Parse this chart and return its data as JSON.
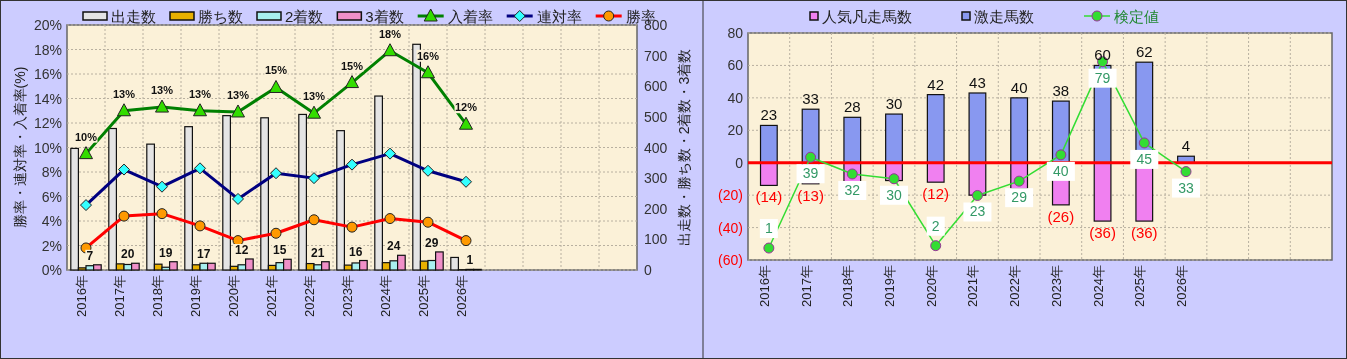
{
  "chart_data": [
    {
      "type": "bar",
      "legend": "top",
      "grid": true,
      "categories": [
        "2016年",
        "2017年",
        "2018年",
        "2019年",
        "2020年",
        "2021年",
        "2022年",
        "2023年",
        "2024年",
        "2025年",
        "2026年",
        null,
        null,
        null,
        null
      ],
      "ylabel": "勝率・連対率・入着率(%)",
      "y2label": "出走数・勝ち数・2着数・3着数",
      "ylim": [
        0,
        20
      ],
      "yticks": [
        {
          "value": 0,
          "label": "0%"
        },
        {
          "value": 2,
          "label": "2%"
        },
        {
          "value": 4,
          "label": "4%"
        },
        {
          "value": 6,
          "label": "6%"
        },
        {
          "value": 8,
          "label": "8%"
        },
        {
          "value": 10,
          "label": "10%"
        },
        {
          "value": 12,
          "label": "12%"
        },
        {
          "value": 14,
          "label": "14%"
        },
        {
          "value": 16,
          "label": "16%"
        },
        {
          "value": 18,
          "label": "18%"
        },
        {
          "value": 20,
          "label": "20%"
        }
      ],
      "y2lim": [
        0,
        800
      ],
      "y2ticks": [
        0,
        100,
        200,
        300,
        400,
        500,
        600,
        700,
        800
      ],
      "series": [
        {
          "name": "出走数",
          "axis": "y2",
          "color": "#e4e4e4",
          "values": [
            397,
            462,
            411,
            468,
            504,
            497,
            508,
            455,
            568,
            737,
            41,
            null,
            null,
            null,
            null
          ]
        },
        {
          "name": "勝ち数",
          "axis": "y2",
          "color": "#e8b000",
          "values": [
            7,
            20,
            19,
            17,
            12,
            15,
            21,
            16,
            24,
            29,
            1,
            null,
            null,
            null,
            null
          ],
          "value_labels": [
            "7",
            "20",
            "19",
            "17",
            "12",
            "15",
            "21",
            "16",
            "24",
            "29",
            "1",
            null,
            null,
            null,
            null
          ]
        },
        {
          "name": "2着数",
          "axis": "y2",
          "color": "#a8f0f0",
          "values": [
            14,
            18,
            9,
            22,
            17,
            24,
            17,
            23,
            30,
            31,
            2,
            null,
            null,
            null,
            null
          ]
        },
        {
          "name": "3着数",
          "axis": "y2",
          "color": "#f090c8",
          "values": [
            17,
            22,
            27,
            22,
            36,
            35,
            27,
            31,
            48,
            59,
            2,
            null,
            null,
            null,
            null
          ]
        },
        {
          "name": "入着率",
          "type": "line",
          "marker": "triangle",
          "color": "#008000",
          "values": [
            9.5,
            13.0,
            13.3,
            13.0,
            12.9,
            14.9,
            12.8,
            15.3,
            17.9,
            16.1,
            11.9,
            null,
            null,
            null,
            null
          ],
          "value_labels": [
            "10%",
            "13%",
            "13%",
            "13%",
            "13%",
            "15%",
            "13%",
            "15%",
            "18%",
            "16%",
            "12%",
            null,
            null,
            null,
            null
          ]
        },
        {
          "name": "連対率",
          "type": "line",
          "marker": "diamond",
          "color": "#000080",
          "values": [
            5.3,
            8.2,
            6.8,
            8.3,
            5.8,
            7.9,
            7.5,
            8.6,
            9.5,
            8.1,
            7.2,
            null,
            null,
            null,
            null
          ]
        },
        {
          "name": "勝率",
          "type": "line",
          "marker": "circle",
          "color": "#ff0000",
          "values": [
            1.8,
            4.4,
            4.6,
            3.6,
            2.4,
            3.0,
            4.1,
            3.5,
            4.2,
            3.9,
            2.4,
            null,
            null,
            null,
            null
          ]
        }
      ]
    },
    {
      "type": "bar",
      "legend": "top",
      "grid": true,
      "stacked": true,
      "categories": [
        "2016年",
        "2017年",
        "2018年",
        "2019年",
        "2020年",
        "2021年",
        "2022年",
        "2023年",
        "2024年",
        "2025年",
        "2026年",
        null,
        null,
        null
      ],
      "ylim": [
        -60,
        80
      ],
      "yticks": [
        {
          "value": -60,
          "label": "(60)"
        },
        {
          "value": -40,
          "label": "(40)"
        },
        {
          "value": -20,
          "label": "(20)"
        },
        0,
        20,
        40,
        60,
        80
      ],
      "y2lim": [
        -4,
        91
      ],
      "ref_lines": [
        {
          "axis": "y",
          "value": 0,
          "color": "#ff0000"
        }
      ],
      "series": [
        {
          "name": "人気凡走馬数",
          "color": "#f080f0",
          "values": [
            -14,
            -13,
            -12,
            -11,
            -12,
            -20,
            -16,
            -26,
            -36,
            -36,
            null,
            null,
            null,
            null
          ],
          "value_labels": [
            "(14)",
            "(13)",
            null,
            null,
            "(12)",
            null,
            null,
            "(26)",
            "(36)",
            "(36)",
            null,
            null,
            null,
            null
          ]
        },
        {
          "name": "激走馬数",
          "color": "#8898f0",
          "values": [
            23,
            33,
            28,
            30,
            42,
            43,
            40,
            38,
            60,
            62,
            4,
            null,
            null,
            null
          ],
          "value_labels": [
            "23",
            "33",
            "28",
            "30",
            "42",
            "43",
            "40",
            "38",
            "60",
            "62",
            "4",
            null,
            null,
            null
          ]
        },
        {
          "name": "検定値",
          "type": "line",
          "axis": "y2",
          "marker": "circle",
          "color": "#33dd33",
          "values": [
            1,
            39,
            32,
            30,
            2,
            23,
            29,
            40,
            79,
            45,
            33,
            null,
            null,
            null
          ],
          "value_labels": [
            "1",
            "39",
            "32",
            "30",
            "2",
            "23",
            "29",
            "40",
            "79",
            "45",
            "33",
            null,
            null,
            null
          ]
        }
      ]
    }
  ]
}
